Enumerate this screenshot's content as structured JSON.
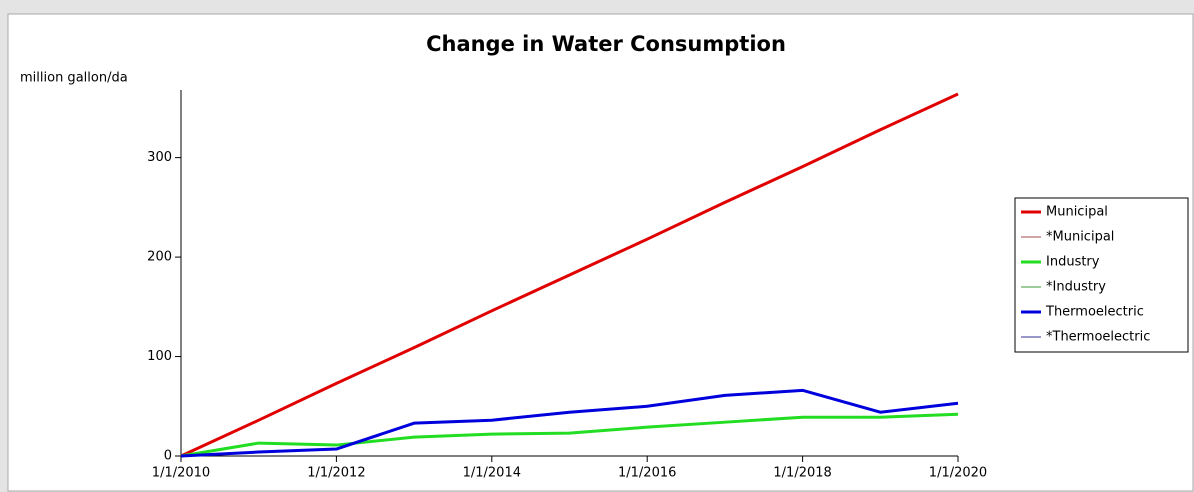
{
  "chart_data": {
    "type": "line",
    "title": "Change in Water Consumption",
    "y_label": "million gallon/da",
    "x": [
      2010,
      2011,
      2012,
      2013,
      2014,
      2015,
      2016,
      2017,
      2018,
      2019,
      2020
    ],
    "xlim": [
      2010,
      2020
    ],
    "xticks": [
      {
        "value": 2010,
        "label": "1/1/2010"
      },
      {
        "value": 2012,
        "label": "1/1/2012"
      },
      {
        "value": 2014,
        "label": "1/1/2014"
      },
      {
        "value": 2016,
        "label": "1/1/2016"
      },
      {
        "value": 2018,
        "label": "1/1/2018"
      },
      {
        "value": 2020,
        "label": "1/1/2020"
      }
    ],
    "ylim": [
      0,
      368
    ],
    "yticks": [
      0,
      100,
      200,
      300
    ],
    "grid": false,
    "legend": "right",
    "series": [
      {
        "name": "Municipal",
        "color": "#e00000",
        "width": 3,
        "values": [
          0,
          36,
          73,
          109,
          146,
          182,
          218,
          255,
          291,
          328,
          364
        ]
      },
      {
        "name": "*Municipal",
        "color": "#a04848",
        "width": 1,
        "values": [
          0,
          36,
          73,
          109,
          146,
          182,
          218,
          255,
          291,
          328,
          364
        ]
      },
      {
        "name": "Industry",
        "color": "#22dd22",
        "width": 3,
        "values": [
          0,
          13,
          11,
          19,
          22,
          23,
          29,
          34,
          39,
          39,
          42
        ]
      },
      {
        "name": "*Industry",
        "color": "#3a9a3a",
        "width": 1,
        "values": [
          0,
          13,
          11,
          19,
          22,
          23,
          29,
          34,
          39,
          39,
          42
        ]
      },
      {
        "name": "Thermoelectric",
        "color": "#0000dd",
        "width": 3,
        "values": [
          0,
          4,
          7,
          33,
          36,
          44,
          50,
          61,
          66,
          44,
          53
        ]
      },
      {
        "name": "*Thermoelectric",
        "color": "#30309a",
        "width": 1,
        "values": [
          0,
          4,
          7,
          33,
          36,
          44,
          50,
          61,
          66,
          44,
          53
        ]
      }
    ]
  }
}
